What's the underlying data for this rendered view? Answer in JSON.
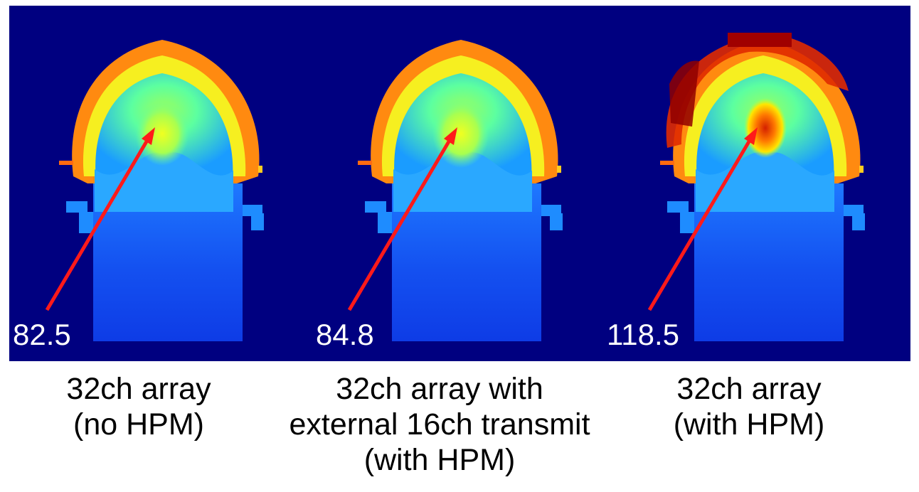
{
  "colors": {
    "background": "#000080",
    "arrow": "#ff1a1a",
    "label_text": "#ffffff",
    "caption_text": "#000000"
  },
  "panels": [
    {
      "value": "82.5",
      "caption_lines": [
        "32ch array",
        "(no HPM)"
      ]
    },
    {
      "value": "84.8",
      "caption_lines": [
        "32ch array with",
        "external 16ch transmit",
        "(with HPM)"
      ]
    },
    {
      "value": "118.5",
      "caption_lines": [
        "32ch array",
        "(with HPM)"
      ]
    }
  ]
}
